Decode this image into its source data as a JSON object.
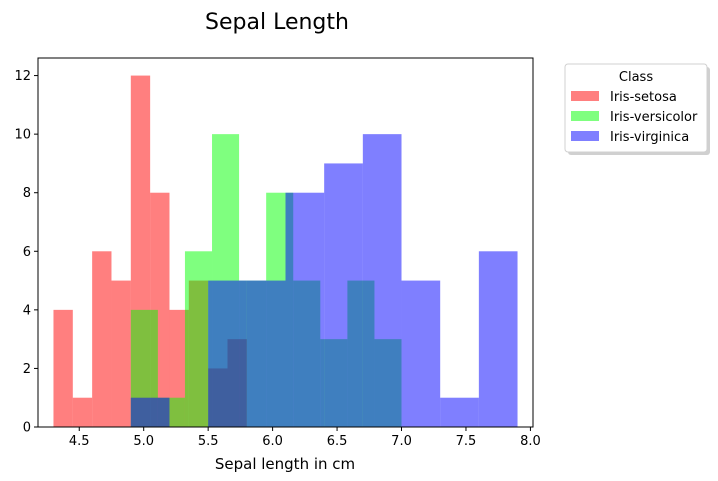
{
  "chart_data": {
    "type": "bar",
    "title": "Sepal Length",
    "xlabel": "Sepal length in cm",
    "ylabel": "",
    "xlim": [
      4.18,
      8.02
    ],
    "ylim": [
      0,
      12.6
    ],
    "xticks": [
      "4.5",
      "5.0",
      "5.5",
      "6.0",
      "6.5",
      "7.0",
      "7.5",
      "8.0"
    ],
    "yticks": [
      "0",
      "2",
      "4",
      "6",
      "8",
      "10",
      "12"
    ],
    "grid": false,
    "legend": {
      "title": "Class",
      "position": "outside-top-right"
    },
    "series": [
      {
        "name": "Iris-setosa",
        "color": "#ff0000",
        "bins": [
          {
            "x0": 4.3,
            "x1": 4.45,
            "value": 4
          },
          {
            "x0": 4.45,
            "x1": 4.6,
            "value": 1
          },
          {
            "x0": 4.6,
            "x1": 4.75,
            "value": 6
          },
          {
            "x0": 4.75,
            "x1": 4.9,
            "value": 5
          },
          {
            "x0": 4.9,
            "x1": 5.05,
            "value": 12
          },
          {
            "x0": 5.05,
            "x1": 5.2,
            "value": 8
          },
          {
            "x0": 5.2,
            "x1": 5.35,
            "value": 4
          },
          {
            "x0": 5.35,
            "x1": 5.5,
            "value": 5
          },
          {
            "x0": 5.5,
            "x1": 5.65,
            "value": 2
          },
          {
            "x0": 5.65,
            "x1": 5.8,
            "value": 3
          }
        ]
      },
      {
        "name": "Iris-versicolor",
        "color": "#00ff00",
        "bins": [
          {
            "x0": 4.9,
            "x1": 5.11,
            "value": 4
          },
          {
            "x0": 5.11,
            "x1": 5.32,
            "value": 1
          },
          {
            "x0": 5.32,
            "x1": 5.53,
            "value": 6
          },
          {
            "x0": 5.53,
            "x1": 5.74,
            "value": 10
          },
          {
            "x0": 5.74,
            "x1": 5.95,
            "value": 5
          },
          {
            "x0": 5.95,
            "x1": 6.16,
            "value": 8
          },
          {
            "x0": 6.16,
            "x1": 6.37,
            "value": 5
          },
          {
            "x0": 6.37,
            "x1": 6.58,
            "value": 3
          },
          {
            "x0": 6.58,
            "x1": 6.79,
            "value": 5
          },
          {
            "x0": 6.79,
            "x1": 7.0,
            "value": 3
          }
        ]
      },
      {
        "name": "Iris-virginica",
        "color": "#0000ff",
        "bins": [
          {
            "x0": 4.9,
            "x1": 5.2,
            "value": 1
          },
          {
            "x0": 5.2,
            "x1": 5.5,
            "value": 0
          },
          {
            "x0": 5.5,
            "x1": 5.8,
            "value": 5
          },
          {
            "x0": 5.8,
            "x1": 6.1,
            "value": 5
          },
          {
            "x0": 6.1,
            "x1": 6.4,
            "value": 8
          },
          {
            "x0": 6.4,
            "x1": 6.7,
            "value": 9
          },
          {
            "x0": 6.7,
            "x1": 7.0,
            "value": 10
          },
          {
            "x0": 7.0,
            "x1": 7.3,
            "value": 5
          },
          {
            "x0": 7.3,
            "x1": 7.6,
            "value": 1
          },
          {
            "x0": 7.6,
            "x1": 7.9,
            "value": 6
          }
        ]
      }
    ]
  }
}
